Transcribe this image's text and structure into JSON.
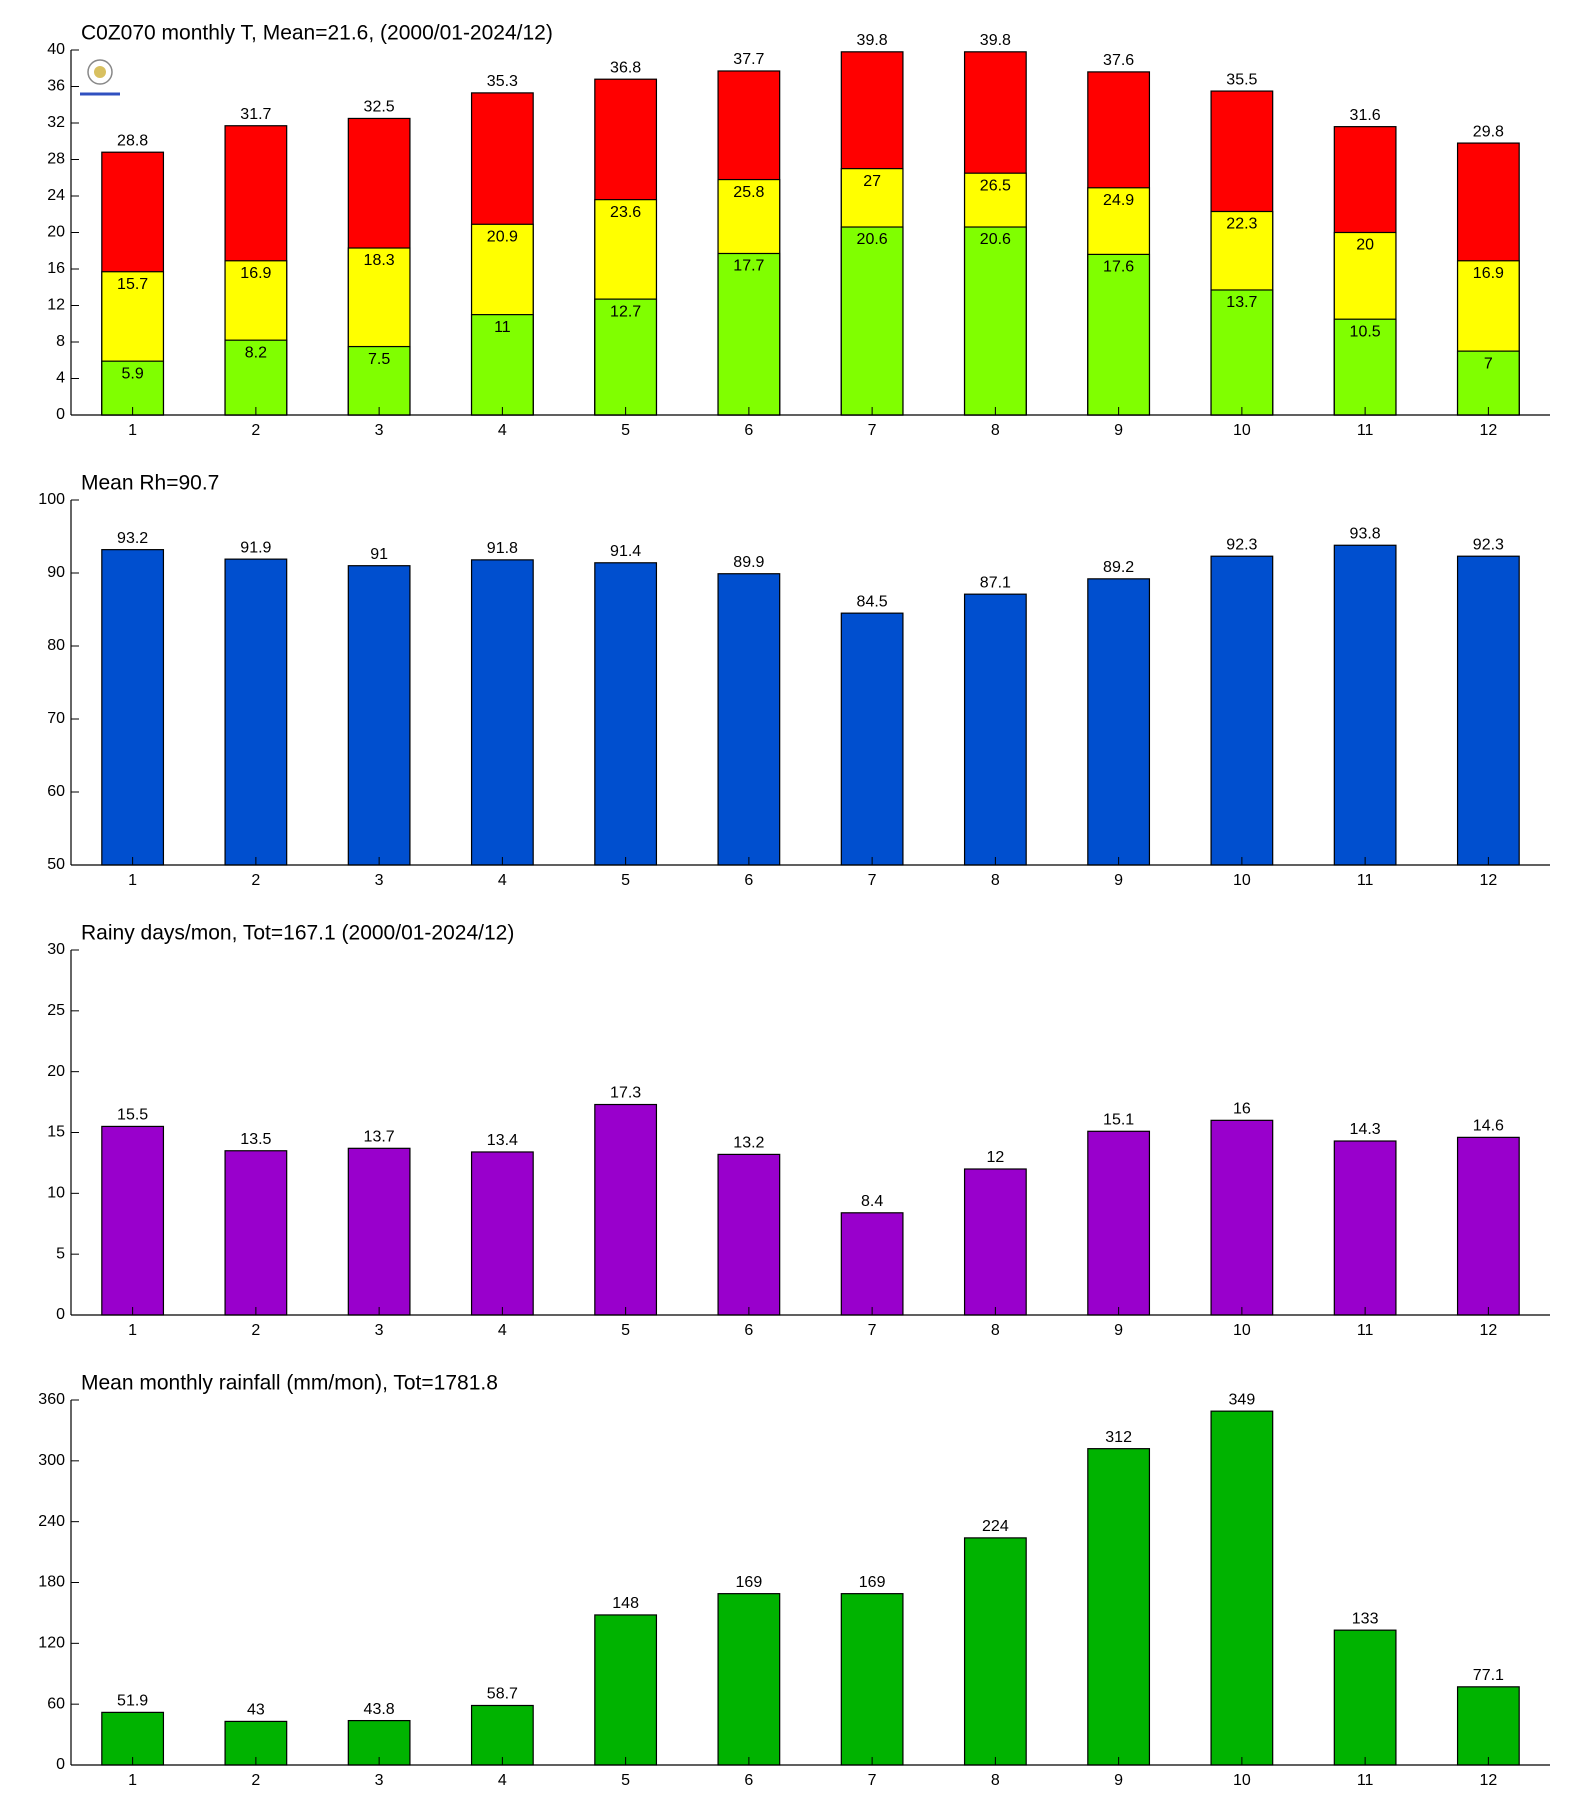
{
  "chart_data": [
    {
      "type": "bar",
      "title": "C0Z070 monthly T, Mean=21.6, (2000/01-2024/12)",
      "categories": [
        "1",
        "2",
        "3",
        "4",
        "5",
        "6",
        "7",
        "8",
        "9",
        "10",
        "11",
        "12"
      ],
      "series": [
        {
          "color": "#ff0000",
          "values": [
            28.8,
            31.7,
            32.5,
            35.3,
            36.8,
            37.7,
            39.8,
            39.8,
            37.6,
            35.5,
            31.6,
            29.8
          ]
        },
        {
          "color": "#ffff00",
          "values": [
            15.7,
            16.9,
            18.3,
            20.9,
            23.6,
            25.8,
            27,
            26.5,
            24.9,
            22.3,
            20,
            16.9
          ]
        },
        {
          "color": "#80ff00",
          "values": [
            5.9,
            8.2,
            7.5,
            11,
            12.7,
            17.7,
            20.6,
            20.6,
            17.6,
            13.7,
            10.5,
            7
          ]
        }
      ],
      "ylim": [
        0,
        40
      ],
      "yticks": [
        0,
        4,
        8,
        12,
        16,
        20,
        24,
        28,
        32,
        36,
        40
      ]
    },
    {
      "type": "bar",
      "title": "Mean Rh=90.7",
      "categories": [
        "1",
        "2",
        "3",
        "4",
        "5",
        "6",
        "7",
        "8",
        "9",
        "10",
        "11",
        "12"
      ],
      "values": [
        93.2,
        91.9,
        91,
        91.8,
        91.4,
        89.9,
        84.5,
        87.1,
        89.2,
        92.3,
        93.8,
        92.3
      ],
      "color": "#004fcf",
      "ylim": [
        50,
        100
      ],
      "yticks": [
        50,
        60,
        70,
        80,
        90,
        100
      ]
    },
    {
      "type": "bar",
      "title": "Rainy days/mon, Tot=167.1 (2000/01-2024/12)",
      "categories": [
        "1",
        "2",
        "3",
        "4",
        "5",
        "6",
        "7",
        "8",
        "9",
        "10",
        "11",
        "12"
      ],
      "values": [
        15.5,
        13.5,
        13.7,
        13.4,
        17.3,
        13.2,
        8.4,
        12,
        15.1,
        16,
        14.3,
        14.6
      ],
      "color": "#9900cc",
      "ylim": [
        0,
        30
      ],
      "yticks": [
        0,
        5,
        10,
        15,
        20,
        25,
        30
      ]
    },
    {
      "type": "bar",
      "title": "Mean monthly rainfall (mm/mon), Tot=1781.8",
      "categories": [
        "1",
        "2",
        "3",
        "4",
        "5",
        "6",
        "7",
        "8",
        "9",
        "10",
        "11",
        "12"
      ],
      "values": [
        51.9,
        43,
        43.8,
        58.7,
        148,
        169,
        169,
        224,
        312,
        349,
        133,
        77.1
      ],
      "color": "#00b300",
      "ylim": [
        0,
        360
      ],
      "yticks": [
        0,
        60,
        120,
        180,
        240,
        300,
        360
      ]
    }
  ]
}
